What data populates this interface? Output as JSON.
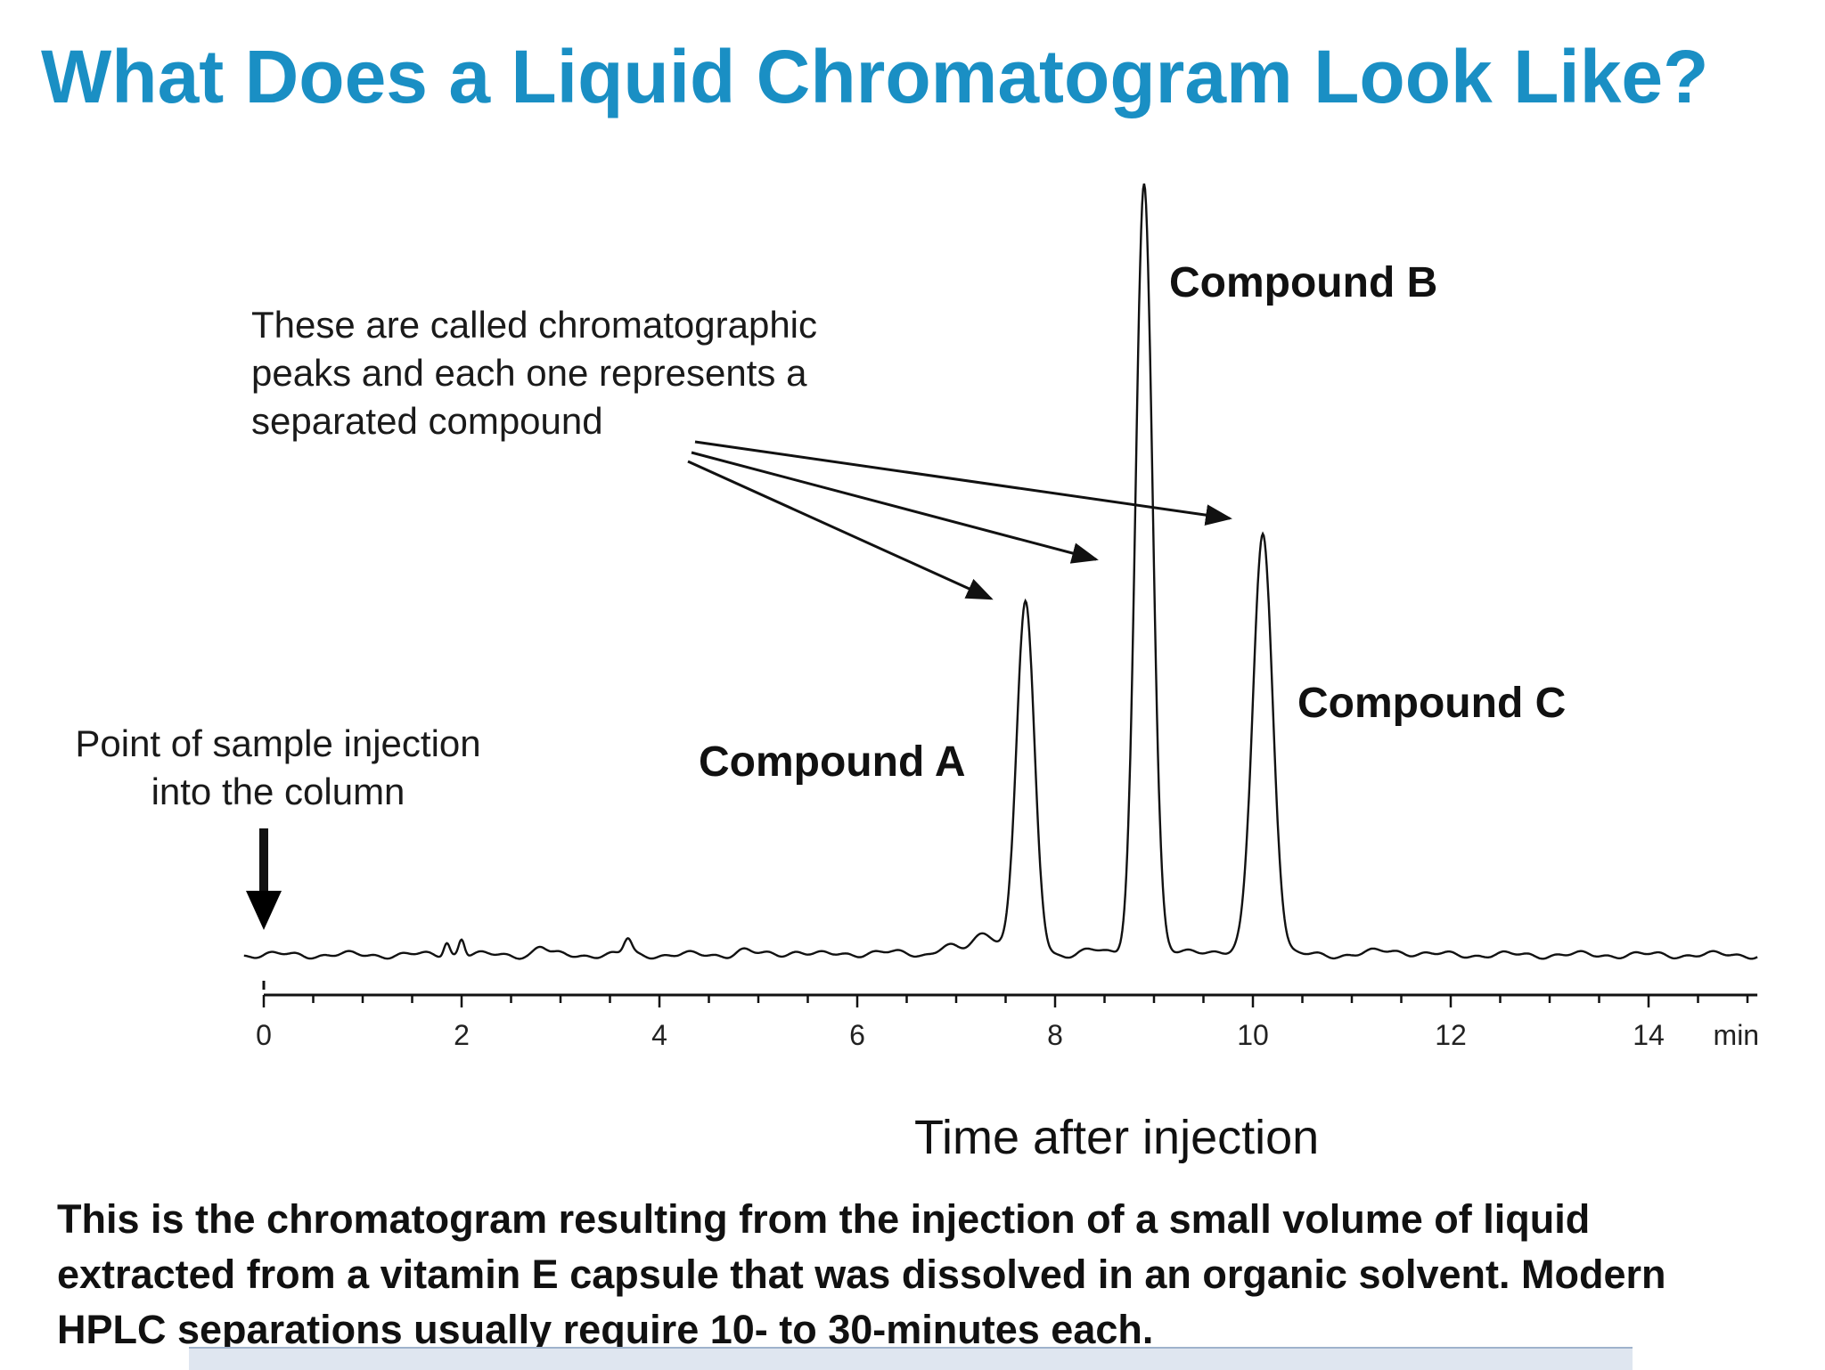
{
  "slide": {
    "title": "What Does a Liquid Chromatogram Look Like?",
    "peaks_note": [
      "These are called chromatographic",
      "peaks and each one represents a",
      "separated compound"
    ],
    "injection_note": [
      "Point of sample injection",
      "into the column"
    ],
    "caption": [
      "This is the chromatogram resulting from the injection of a small volume of liquid",
      "extracted from a vitamin E capsule that was dissolved in an organic solvent. Modern",
      "HPLC separations usually require 10- to 30-minutes each."
    ]
  },
  "chart_data": {
    "type": "line",
    "xlabel": "Time after injection",
    "x_unit": "min",
    "xlim": [
      0,
      15.1
    ],
    "xticks": [
      0,
      2,
      4,
      6,
      8,
      10,
      12,
      14
    ],
    "ylim": [
      0,
      1
    ],
    "baseline_range": [
      -0.2,
      15.1
    ],
    "grid": false,
    "injection_time": 0,
    "peaks": [
      {
        "name": "Compound A",
        "t": 7.7,
        "height": 0.45,
        "width": 0.09
      },
      {
        "name": "Compound B",
        "t": 8.9,
        "height": 0.99,
        "width": 0.085
      },
      {
        "name": "Compound C",
        "t": 10.1,
        "height": 0.54,
        "width": 0.1
      }
    ],
    "minor_peaks": [
      {
        "t": 1.85,
        "height": 0.018,
        "width": 0.03
      },
      {
        "t": 2.0,
        "height": 0.022,
        "width": 0.03
      },
      {
        "t": 2.8,
        "height": 0.01,
        "width": 0.06
      },
      {
        "t": 3.68,
        "height": 0.02,
        "width": 0.04
      },
      {
        "t": 4.85,
        "height": 0.006,
        "width": 0.08
      },
      {
        "t": 5.4,
        "height": 0.005,
        "width": 0.1
      },
      {
        "t": 6.2,
        "height": 0.004,
        "width": 0.15
      },
      {
        "t": 6.9,
        "height": 0.012,
        "width": 0.1
      },
      {
        "t": 7.3,
        "height": 0.028,
        "width": 0.12
      },
      {
        "t": 8.35,
        "height": 0.006,
        "width": 0.12
      },
      {
        "t": 9.45,
        "height": 0.007,
        "width": 0.15
      },
      {
        "t": 11.4,
        "height": 0.005,
        "width": 0.2
      }
    ]
  }
}
